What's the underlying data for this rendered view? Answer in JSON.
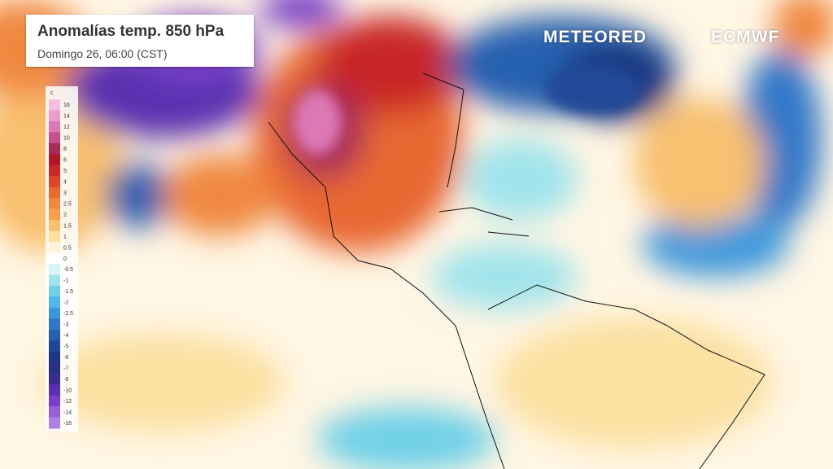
{
  "header": {
    "title": "Anomalías temp. 850 hPa",
    "subtitle": "Domingo 26, 06:00 (CST)"
  },
  "logos": {
    "left": "METEORED",
    "right": "ECMWF"
  },
  "legend": {
    "unit": "c",
    "items": [
      {
        "label": "16",
        "color": "#f4c0e0"
      },
      {
        "label": "14",
        "color": "#ec9ccc"
      },
      {
        "label": "12",
        "color": "#dc78b4"
      },
      {
        "label": "10",
        "color": "#c4508c"
      },
      {
        "label": "8",
        "color": "#a82c58"
      },
      {
        "label": "6",
        "color": "#b01828"
      },
      {
        "label": "5",
        "color": "#c82828"
      },
      {
        "label": "4",
        "color": "#d84828"
      },
      {
        "label": "3",
        "color": "#e86830"
      },
      {
        "label": "2.5",
        "color": "#f08840"
      },
      {
        "label": "2",
        "color": "#f4a050"
      },
      {
        "label": "1.5",
        "color": "#f8c070"
      },
      {
        "label": "1",
        "color": "#fce0a0"
      },
      {
        "label": "0.5",
        "color": "#fff4d8"
      },
      {
        "label": "0",
        "color": "#ffffff"
      },
      {
        "label": "-0.5",
        "color": "#d8f4f4"
      },
      {
        "label": "-1",
        "color": "#a0e4ec"
      },
      {
        "label": "-1.5",
        "color": "#70d0e8"
      },
      {
        "label": "-2",
        "color": "#50b8e8"
      },
      {
        "label": "-2.5",
        "color": "#3c98dc"
      },
      {
        "label": "-3",
        "color": "#3078c8"
      },
      {
        "label": "-4",
        "color": "#2860b0"
      },
      {
        "label": "-5",
        "color": "#204898"
      },
      {
        "label": "-6",
        "color": "#1c3880"
      },
      {
        "label": "-7",
        "color": "#283080"
      },
      {
        "label": "-8",
        "color": "#3c2c90"
      },
      {
        "label": "-10",
        "color": "#5a30b0"
      },
      {
        "label": "-12",
        "color": "#7840c8"
      },
      {
        "label": "-14",
        "color": "#9860d8"
      },
      {
        "label": "-16",
        "color": "#b080e0"
      }
    ]
  }
}
